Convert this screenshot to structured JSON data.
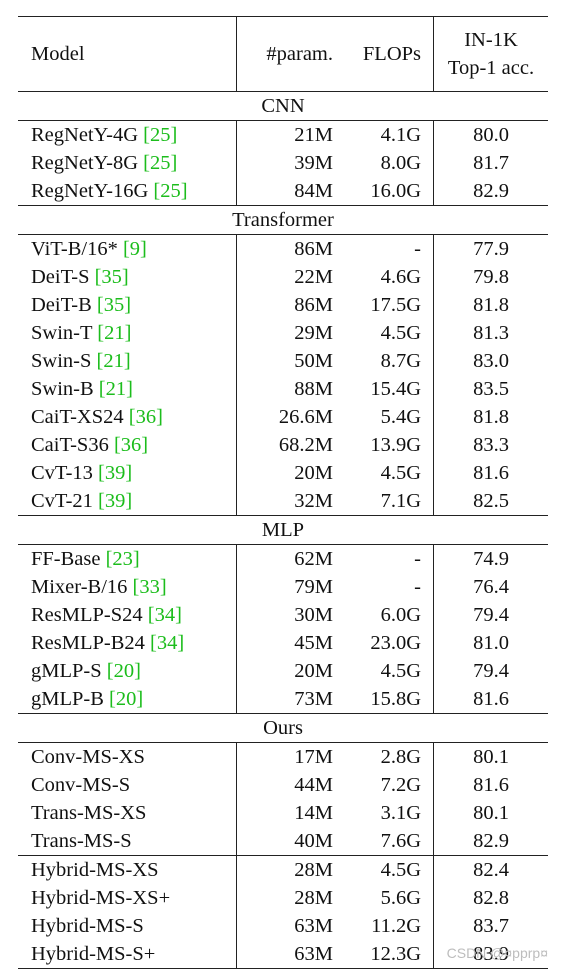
{
  "header": {
    "model": "Model",
    "params": "#param.",
    "flops": "FLOPs",
    "acc_line1": "IN-1K",
    "acc_line2": "Top-1 acc."
  },
  "groups": [
    {
      "name": "CNN",
      "rows": [
        {
          "model": "RegNetY-4G ",
          "ref": "[25]",
          "params": "21M",
          "flops": "4.1G",
          "acc": "80.0"
        },
        {
          "model": "RegNetY-8G ",
          "ref": "[25]",
          "params": "39M",
          "flops": "8.0G",
          "acc": "81.7"
        },
        {
          "model": "RegNetY-16G ",
          "ref": "[25]",
          "params": "84M",
          "flops": "16.0G",
          "acc": "82.9"
        }
      ]
    },
    {
      "name": "Transformer",
      "rows": [
        {
          "model": "ViT-B/16* ",
          "ref": "[9]",
          "params": "86M",
          "flops": "-",
          "acc": "77.9"
        },
        {
          "model": "DeiT-S ",
          "ref": "[35]",
          "params": "22M",
          "flops": "4.6G",
          "acc": "79.8"
        },
        {
          "model": "DeiT-B ",
          "ref": "[35]",
          "params": "86M",
          "flops": "17.5G",
          "acc": "81.8"
        },
        {
          "model": "Swin-T ",
          "ref": "[21]",
          "params": "29M",
          "flops": "4.5G",
          "acc": "81.3"
        },
        {
          "model": "Swin-S ",
          "ref": "[21]",
          "params": "50M",
          "flops": "8.7G",
          "acc": "83.0"
        },
        {
          "model": "Swin-B ",
          "ref": "[21]",
          "params": "88M",
          "flops": "15.4G",
          "acc": "83.5"
        },
        {
          "model": "CaiT-XS24 ",
          "ref": "[36]",
          "params": "26.6M",
          "flops": "5.4G",
          "acc": "81.8"
        },
        {
          "model": "CaiT-S36 ",
          "ref": "[36]",
          "params": "68.2M",
          "flops": "13.9G",
          "acc": "83.3"
        },
        {
          "model": "CvT-13 ",
          "ref": "[39]",
          "params": "20M",
          "flops": "4.5G",
          "acc": "81.6"
        },
        {
          "model": "CvT-21 ",
          "ref": "[39]",
          "params": "32M",
          "flops": "7.1G",
          "acc": "82.5"
        }
      ]
    },
    {
      "name": "MLP",
      "rows": [
        {
          "model": "FF-Base ",
          "ref": "[23]",
          "params": "62M",
          "flops": "-",
          "acc": "74.9"
        },
        {
          "model": "Mixer-B/16 ",
          "ref": "[33]",
          "params": "79M",
          "flops": "-",
          "acc": "76.4"
        },
        {
          "model": "ResMLP-S24 ",
          "ref": "[34]",
          "params": "30M",
          "flops": "6.0G",
          "acc": "79.4"
        },
        {
          "model": "ResMLP-B24 ",
          "ref": "[34]",
          "params": "45M",
          "flops": "23.0G",
          "acc": "81.0"
        },
        {
          "model": "gMLP-S ",
          "ref": "[20]",
          "params": "20M",
          "flops": "4.5G",
          "acc": "79.4"
        },
        {
          "model": "gMLP-B ",
          "ref": "[20]",
          "params": "73M",
          "flops": "15.8G",
          "acc": "81.6"
        }
      ]
    },
    {
      "name": "Ours",
      "rows": [
        {
          "model": "Conv-MS-XS",
          "ref": "",
          "params": "17M",
          "flops": "2.8G",
          "acc": "80.1"
        },
        {
          "model": "Conv-MS-S",
          "ref": "",
          "params": "44M",
          "flops": "7.2G",
          "acc": "81.6"
        },
        {
          "model": "Trans-MS-XS",
          "ref": "",
          "params": "14M",
          "flops": "3.1G",
          "acc": "80.1"
        },
        {
          "model": "Trans-MS-S",
          "ref": "",
          "params": "40M",
          "flops": "7.6G",
          "acc": "82.9"
        },
        {
          "model": "Hybrid-MS-XS",
          "ref": "",
          "params": "28M",
          "flops": "4.5G",
          "acc": "82.4",
          "split": true
        },
        {
          "model": "Hybrid-MS-XS+",
          "ref": "",
          "params": "28M",
          "flops": "5.6G",
          "acc": "82.8"
        },
        {
          "model": "Hybrid-MS-S",
          "ref": "",
          "params": "63M",
          "flops": "11.2G",
          "acc": "83.7"
        },
        {
          "model": "Hybrid-MS-S+",
          "ref": "",
          "params": "63M",
          "flops": "12.3G",
          "acc": "83.9"
        }
      ]
    }
  ],
  "watermark": "CSDN @¤pprp¤"
}
